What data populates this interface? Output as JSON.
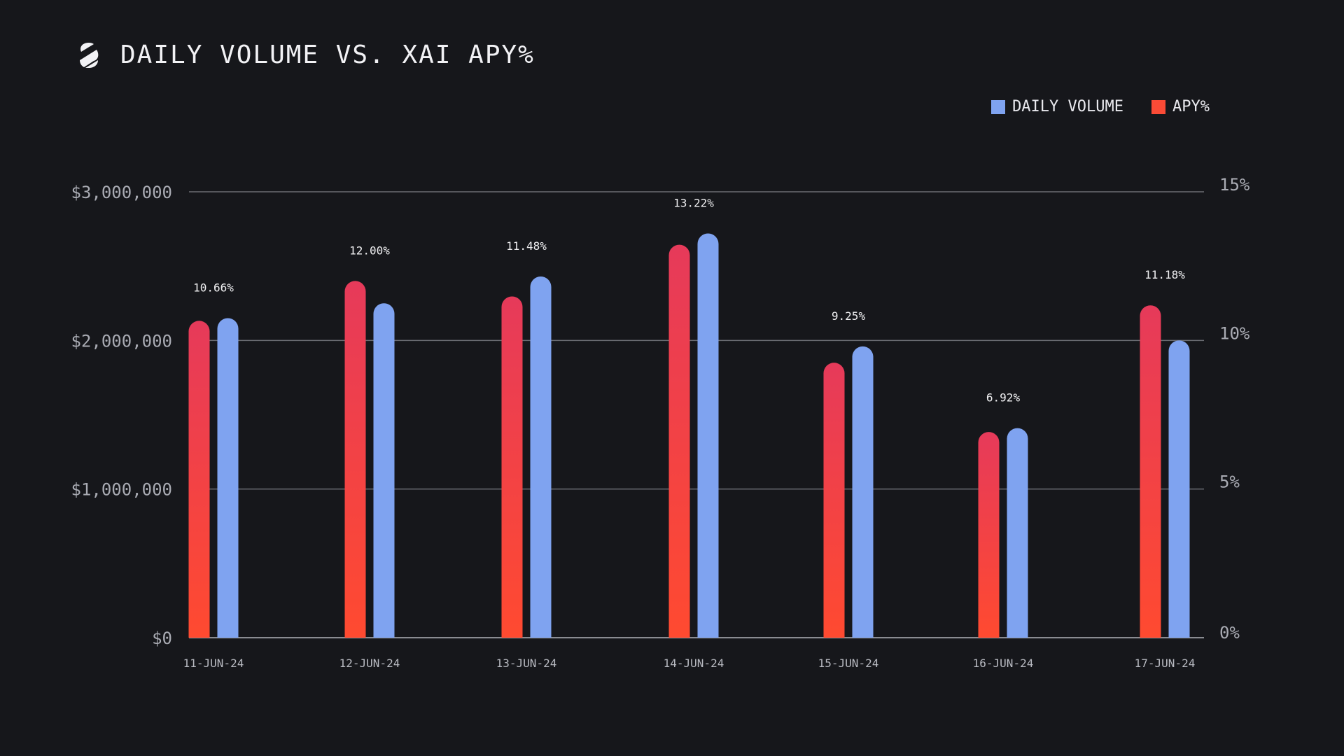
{
  "header": {
    "title": "DAILY VOLUME VS. XAI APY%",
    "logo_icon": "s-logo-icon"
  },
  "legend": [
    {
      "label": "DAILY VOLUME",
      "color": "#7fa3f0"
    },
    {
      "label": "APY%",
      "color": "#fa4b36"
    }
  ],
  "colors": {
    "background": "#16171b",
    "volume": "#7fa3f0",
    "apy_top": "#e63a5a",
    "apy_bottom": "#ff4a30",
    "grid": "#6b6d73"
  },
  "chart_data": {
    "type": "bar",
    "title": "DAILY VOLUME VS. XAI APY%",
    "categories": [
      "11-JUN-24",
      "12-JUN-24",
      "13-JUN-24",
      "14-JUN-24",
      "15-JUN-24",
      "16-JUN-24",
      "17-JUN-24"
    ],
    "series": [
      {
        "name": "APY%",
        "axis": "right",
        "values": [
          10.66,
          12.0,
          11.48,
          13.22,
          9.25,
          6.92,
          11.18
        ],
        "labels": [
          "10.66%",
          "12.00%",
          "11.48%",
          "13.22%",
          "9.25%",
          "6.92%",
          "11.18%"
        ]
      },
      {
        "name": "DAILY VOLUME",
        "axis": "left",
        "values": [
          2150000,
          2250000,
          2430000,
          2720000,
          1960000,
          1410000,
          2000000
        ]
      }
    ],
    "y_left": {
      "range": [
        0,
        3000000
      ],
      "ticks": [
        0,
        1000000,
        2000000,
        3000000
      ],
      "tick_labels": [
        "$0",
        "$1,000,000",
        "$2,000,000",
        "$3,000,000"
      ]
    },
    "y_right": {
      "range": [
        0,
        15
      ],
      "ticks": [
        0,
        5,
        10,
        15
      ],
      "tick_labels": [
        "0%",
        "5%",
        "10%",
        "15%"
      ]
    },
    "grid": true,
    "legend_position": "top-right"
  }
}
